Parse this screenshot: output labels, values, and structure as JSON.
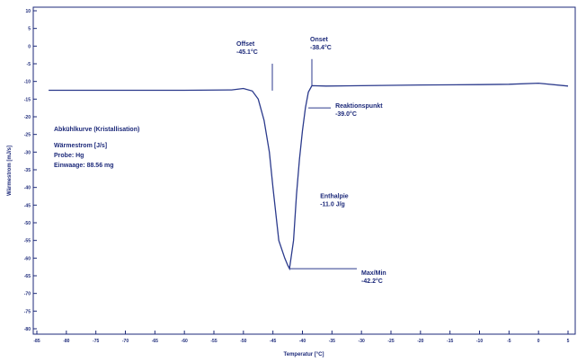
{
  "chart_data": {
    "type": "line",
    "title": "",
    "xlabel": "Temperatur [°C]",
    "ylabel": "Wärmestrom [mJ/s]",
    "xlim": [
      -85,
      5
    ],
    "ylim": [
      -80,
      10
    ],
    "x_ticks": [
      "-85",
      "-80",
      "-75",
      "-70",
      "-65",
      "-60",
      "-55",
      "-50",
      "-45",
      "-40",
      "-35",
      "-30",
      "-25",
      "-20",
      "-15",
      "-10",
      "-5",
      "0",
      "5"
    ],
    "y_ticks": [
      "10",
      "5",
      "0",
      "-5",
      "-10",
      "-15",
      "-20",
      "-25",
      "-30",
      "-35",
      "-40",
      "-45",
      "-50",
      "-55",
      "-60",
      "-65",
      "-70",
      "-75",
      "-80"
    ],
    "grid": false,
    "series": [
      {
        "color": "#2b3a8c",
        "x": [
          -83,
          -70,
          -65,
          -60,
          -52,
          -50,
          -48.5,
          -47.5,
          -46.5,
          -45.6,
          -45.0,
          -44.0,
          -43.0,
          -42.5,
          -42.2,
          -41.5,
          -41.0,
          -40.5,
          -40.0,
          -39.5,
          -39.0,
          -38.4,
          -36,
          -30,
          -20,
          -10,
          -5,
          0,
          5
        ],
        "y": [
          -12.5,
          -12.5,
          -12.5,
          -12.5,
          -12.4,
          -12.0,
          -12.7,
          -15.0,
          -21.0,
          -30.0,
          -40.0,
          -55.0,
          -60.0,
          -62.0,
          -63.0,
          -55.0,
          -42.0,
          -32.0,
          -24.0,
          -17.5,
          -13.0,
          -11.2,
          -11.3,
          -11.2,
          -11.0,
          -10.9,
          -10.8,
          -10.5,
          -11.3
        ]
      }
    ],
    "annotations": [
      {
        "id": "offset",
        "label": "Offset",
        "value": "-45.1°C",
        "x": -45.1
      },
      {
        "id": "onset",
        "label": "Onset",
        "value": "-38.4°C",
        "x": -38.4
      },
      {
        "id": "reaktion",
        "label": "Reaktionspunkt",
        "value": "-39.0°C",
        "x": -39.0
      },
      {
        "id": "maxmin",
        "label": "Max/Min",
        "value": "-42.2°C",
        "x": -42.2
      },
      {
        "id": "enthalpie",
        "label": "Enthalpie",
        "value": "-11.0 J/g"
      }
    ],
    "info_box": {
      "title": "Abkühlkurve (Kristallisation)",
      "lines": [
        "Wärmestrom [J/s]",
        "Probe: Hg",
        "Einwaage: 88.56 mg"
      ]
    }
  }
}
